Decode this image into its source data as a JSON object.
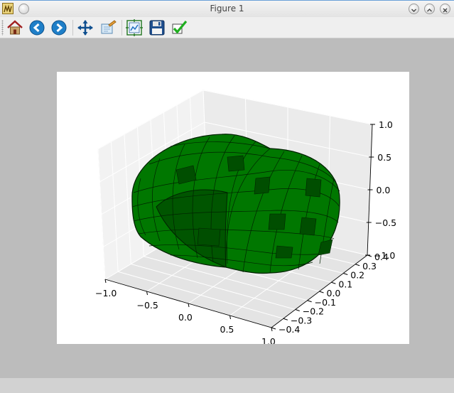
{
  "window": {
    "title": "Figure 1"
  },
  "toolbar": {
    "buttons": [
      {
        "name": "home-button",
        "icon": "home-icon",
        "tooltip": "Home"
      },
      {
        "name": "back-button",
        "icon": "arrow-left-icon",
        "tooltip": "Back"
      },
      {
        "name": "forward-button",
        "icon": "arrow-right-icon",
        "tooltip": "Forward"
      },
      {
        "name": "pan-button",
        "icon": "move-icon",
        "tooltip": "Pan"
      },
      {
        "name": "zoom-button",
        "icon": "zoom-rect-icon",
        "tooltip": "Zoom"
      },
      {
        "name": "subplots-button",
        "icon": "subplots-icon",
        "tooltip": "Configure subplots"
      },
      {
        "name": "save-button",
        "icon": "floppy-icon",
        "tooltip": "Save"
      },
      {
        "name": "edit-button",
        "icon": "checkmark-icon",
        "tooltip": "Edit axis"
      }
    ]
  },
  "colors": {
    "surface": "#007700",
    "surface_dark": "#004e00",
    "edge": "#002200"
  },
  "chart_data": {
    "type": "3d-surface",
    "x_ticks": [
      "−1.0",
      "−0.5",
      "0.0",
      "0.5",
      "1.0"
    ],
    "y_ticks": [
      "−0.4",
      "−0.3",
      "−0.2",
      "−0.1",
      "0.0",
      "0.1",
      "0.2",
      "0.3",
      "0.4"
    ],
    "z_ticks": [
      "1.0",
      "0.5",
      "0.0",
      "−0.5",
      "−1.0"
    ],
    "xlim": [
      -1.0,
      1.0
    ],
    "ylim": [
      -0.4,
      0.4
    ],
    "zlim": [
      -1.0,
      1.0
    ],
    "grid": true
  }
}
